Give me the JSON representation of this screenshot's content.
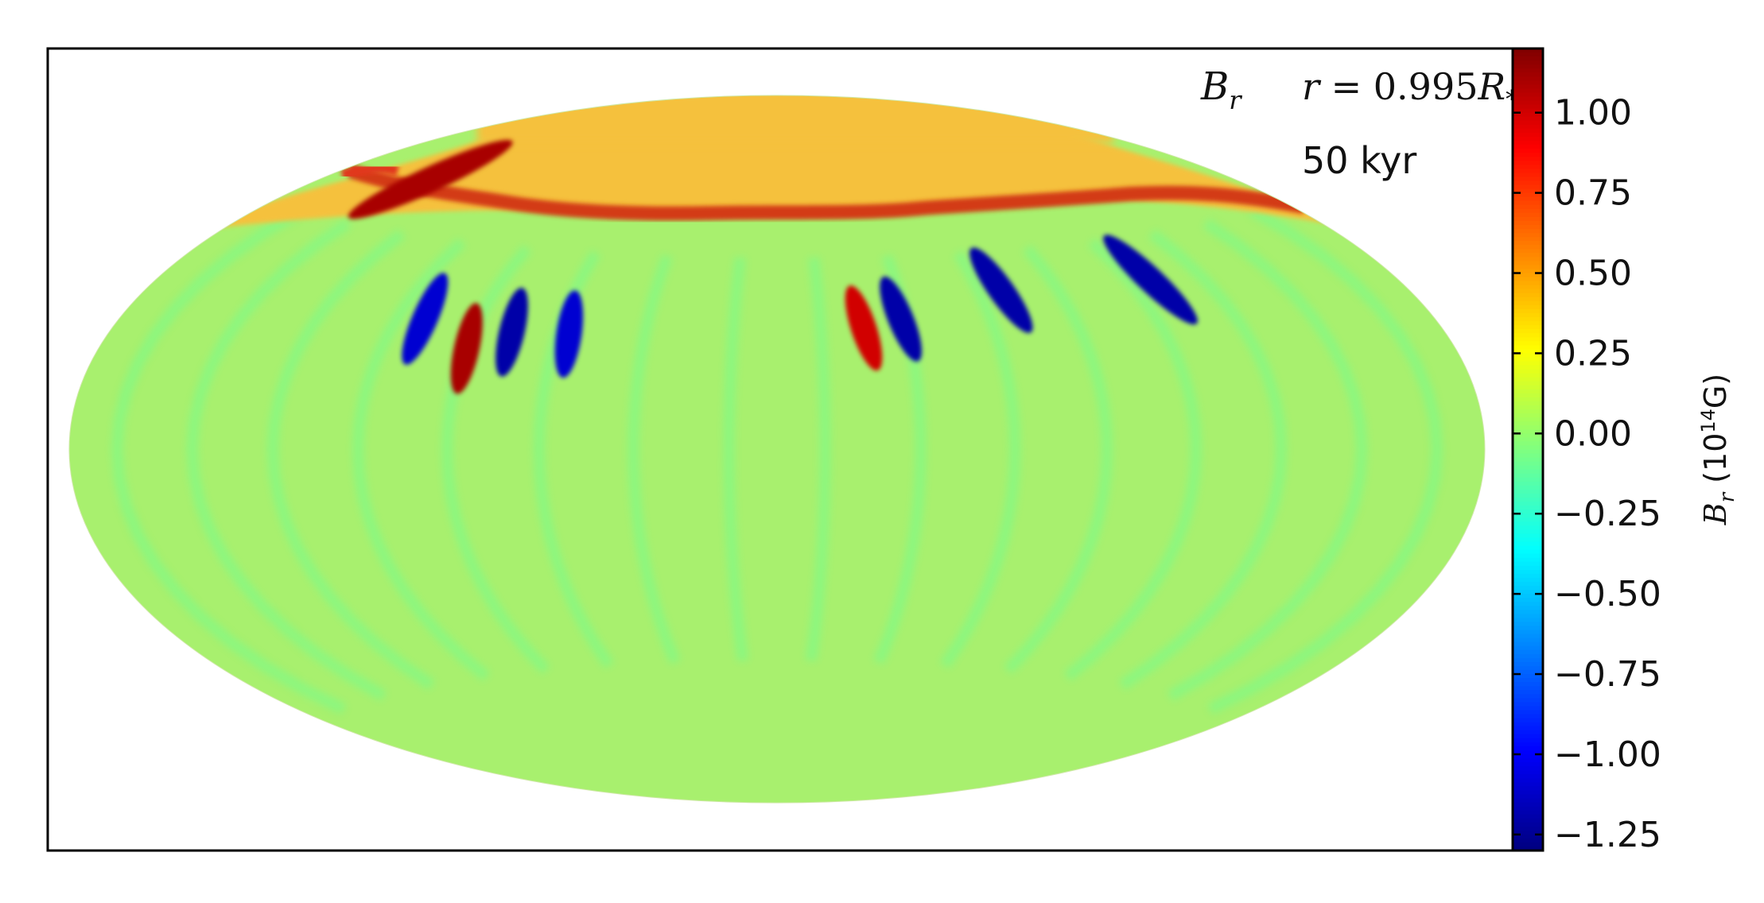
{
  "chart_data": {
    "type": "heatmap",
    "projection": "hammer-aitoff",
    "annotations": {
      "field_symbol": "B",
      "field_subscript": "r",
      "radius_lhs": "r",
      "radius_eq": " = 0.995",
      "radius_R": "R",
      "radius_sub": "*",
      "time_label": "50 kyr"
    },
    "colorbar": {
      "colormap": "jet",
      "vmin": -1.3,
      "vmax": 1.2,
      "ticks": [
        1.0,
        0.75,
        0.5,
        0.25,
        0.0,
        -0.25,
        -0.5,
        -0.75,
        -1.0,
        -1.25
      ],
      "tick_labels": [
        "1.00",
        "0.75",
        "0.50",
        "0.25",
        "0.00",
        "−0.25",
        "−0.50",
        "−0.75",
        "−1.00",
        "−1.25"
      ],
      "label_symbol": "B",
      "label_subscript": "r",
      "label_unit_open": "(10",
      "label_unit_exp": "14",
      "label_unit_close": "G)"
    },
    "field": {
      "background_value": 0.1,
      "polar_cap_value": 0.55,
      "polar_cap_edge_latitude_deg": 52,
      "ring_value": 1.05,
      "notable_features": [
        {
          "lon": -150,
          "lat": 58,
          "value": 1.1
        },
        {
          "lon": -80,
          "lat": 24,
          "value": 1.1
        },
        {
          "lon": -70,
          "lat": 28,
          "value": -1.2
        },
        {
          "lon": -95,
          "lat": 30,
          "value": -1.1
        },
        {
          "lon": -55,
          "lat": 28,
          "value": -1.1
        },
        {
          "lon": 30,
          "lat": 32,
          "value": -1.2
        },
        {
          "lon": 20,
          "lat": 30,
          "value": 1.0
        },
        {
          "lon": 105,
          "lat": 38,
          "value": -1.2
        },
        {
          "lon": 60,
          "lat": 38,
          "value": -1.2
        }
      ]
    }
  }
}
